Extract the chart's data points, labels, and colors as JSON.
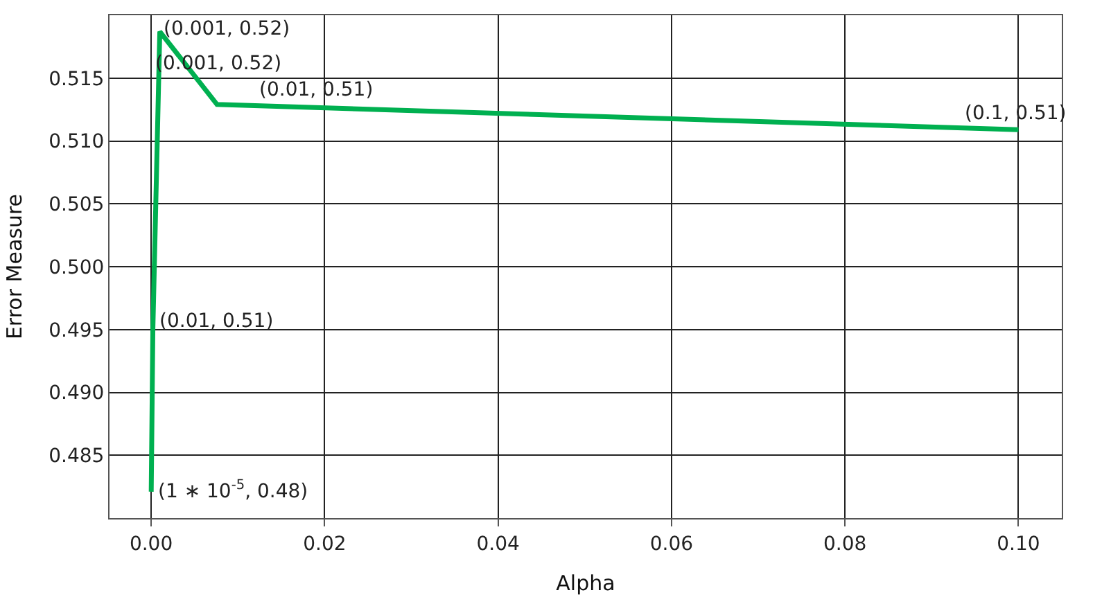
{
  "chart_data": {
    "type": "line",
    "xlabel": "Alpha",
    "ylabel": "Error Measure",
    "x": [
      1e-05,
      0.0002,
      0.001,
      0.0076,
      0.1
    ],
    "series": [
      {
        "color": "#00b050",
        "values": [
          0.4821,
          0.495,
          0.5187,
          0.5129,
          0.5109
        ]
      }
    ],
    "xlim": [
      -0.0048,
      0.105
    ],
    "ylim": [
      0.48,
      0.52
    ],
    "xticks": [
      {
        "value": 0,
        "label": "0.00"
      },
      {
        "value": 0.02,
        "label": "0.02"
      },
      {
        "value": 0.04,
        "label": "0.04"
      },
      {
        "value": 0.06,
        "label": "0.06"
      },
      {
        "value": 0.08,
        "label": "0.08"
      },
      {
        "value": 0.1,
        "label": "0.10"
      }
    ],
    "yticks": [
      0.485,
      {
        "value": 0.49,
        "label": "0.490"
      },
      0.495,
      {
        "value": 0.5,
        "label": "0.500"
      },
      {
        "value": 0.505,
        "label": "0.505"
      },
      {
        "value": 0.51,
        "label": "0.510"
      },
      {
        "value": 0.515,
        "label": "0.515"
      }
    ],
    "grid": true,
    "marker": "none",
    "line_style": "solid",
    "annotations": [
      {
        "text": "(1 ∗ 10$^{-5}$, 0.48)",
        "x": 0.0005,
        "y": 0.4822
      },
      {
        "text": "(0.01, 0.51)",
        "x": 0.0007,
        "y": 0.4957
      },
      {
        "text": "(0.001, 0.52)",
        "x": 0.0001,
        "y": 0.5161
      },
      {
        "text": "(0.001, 0.52)",
        "x": 0.0001,
        "y": 0.5187
      },
      {
        "text": "(0.01, 0.51)",
        "x": 0.0076,
        "y": 0.5129
      },
      {
        "text": "(0.1, 0.51)",
        "x": 0.1,
        "y": 0.5109
      }
    ]
  }
}
